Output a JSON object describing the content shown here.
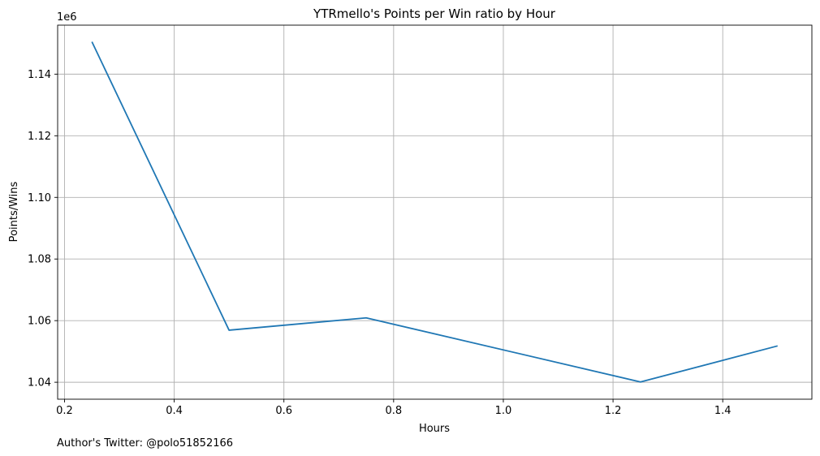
{
  "chart_data": {
    "type": "line",
    "title": "YTRmello's Points per Win ratio by Hour",
    "xlabel": "Hours",
    "ylabel": "Points/Wins",
    "y_offset_label": "1e6",
    "footnote": "Author's Twitter: @polo51852166",
    "xlim": [
      0.1875,
      1.5625
    ],
    "ylim": [
      1.0345,
      1.1559
    ],
    "x_ticks": [
      0.2,
      0.4,
      0.6,
      0.8,
      1.0,
      1.2,
      1.4
    ],
    "x_tick_labels": [
      "0.2",
      "0.4",
      "0.6",
      "0.8",
      "1.0",
      "1.2",
      "1.4"
    ],
    "y_ticks": [
      1.04,
      1.06,
      1.08,
      1.1,
      1.12,
      1.14
    ],
    "y_tick_labels": [
      "1.04",
      "1.06",
      "1.08",
      "1.10",
      "1.12",
      "1.14"
    ],
    "grid": true,
    "line_color": "#1f77b4",
    "series": [
      {
        "x": [
          0.25,
          0.5,
          0.75,
          1.25,
          1.5
        ],
        "values": [
          1.1505,
          1.0569,
          1.0609,
          1.0401,
          1.0518
        ]
      }
    ]
  }
}
